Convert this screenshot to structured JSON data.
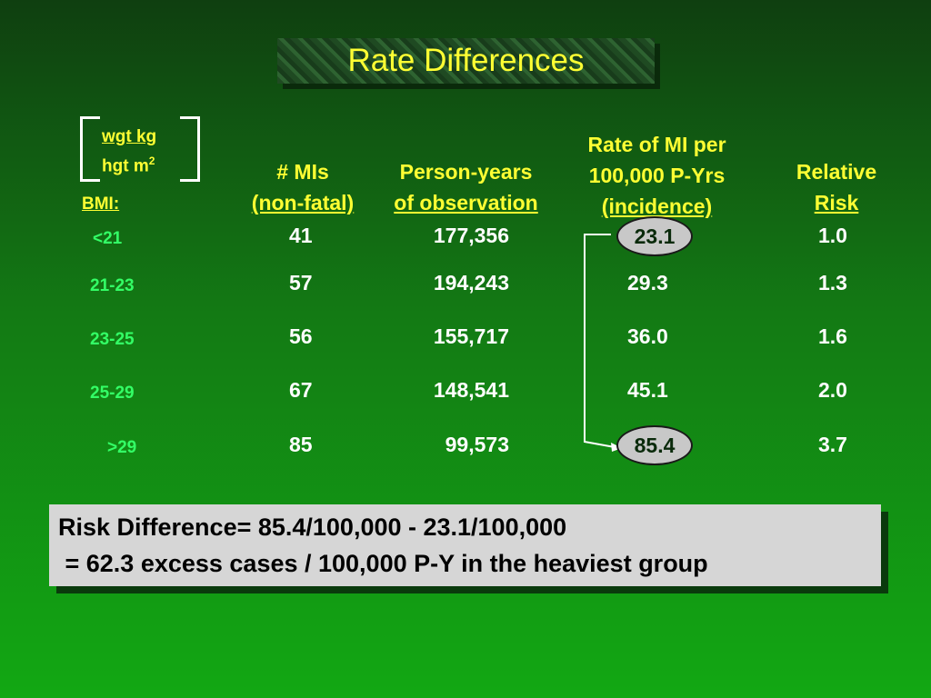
{
  "title": "Rate Differences",
  "bmi_formula": {
    "numerator": "wgt kg",
    "denominator": "hgt  m",
    "exponent": "2"
  },
  "headers": {
    "bmi": "BMI:",
    "mis_line1": "# MIs",
    "mis_line2": "(non-fatal)",
    "py_line1": "Person-years",
    "py_line2": "of observation",
    "rate_line1": "Rate of MI per",
    "rate_line2": "100,000 P-Yrs",
    "rate_line3": "(incidence)",
    "rr_line1": "Relative",
    "rr_line2": "Risk"
  },
  "rows": [
    {
      "bmi": "<21",
      "mis": "41",
      "person_years": "177,356",
      "rate": "23.1",
      "rr": "1.0"
    },
    {
      "bmi": "21-23",
      "mis": "57",
      "person_years": "194,243",
      "rate": "29.3",
      "rr": "1.3"
    },
    {
      "bmi": "23-25",
      "mis": "56",
      "person_years": "155,717",
      "rate": "36.0",
      "rr": "1.6"
    },
    {
      "bmi": "25-29",
      "mis": "67",
      "person_years": "148,541",
      "rate": "45.1",
      "rr": "2.0"
    },
    {
      "bmi": ">29",
      "mis": "85",
      "person_years": "99,573",
      "rate": "85.4",
      "rr": "3.7"
    }
  ],
  "note": {
    "line1": "Risk Difference= 85.4/100,000 - 23.1/100,000",
    "line2": " = 62.3 excess cases / 100,000 P-Y in the heaviest group"
  },
  "colors": {
    "header": "#ffff33",
    "bmi_labels": "#33ff66",
    "values": "#ffffff",
    "highlight_fill": "#c8c8c8"
  }
}
